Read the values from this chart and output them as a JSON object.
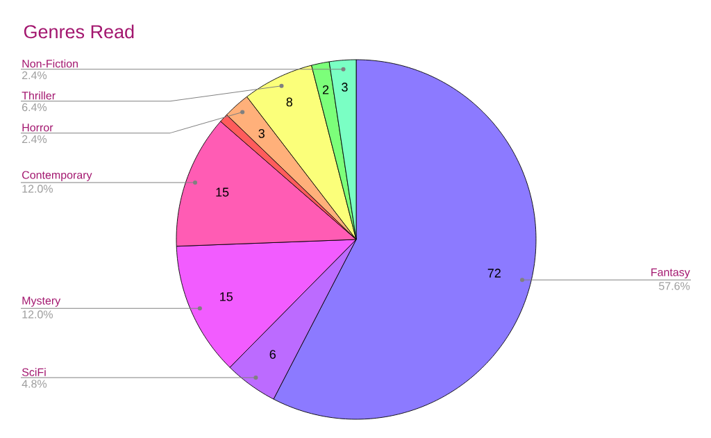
{
  "chart_data": {
    "type": "pie",
    "title": "Genres Read",
    "categories": [
      "Fantasy",
      "SciFi",
      "Mystery",
      "Contemporary",
      null,
      "Horror",
      "Thriller",
      null,
      "Non-Fiction"
    ],
    "values": [
      72,
      6,
      15,
      15,
      1,
      3,
      8,
      2,
      3
    ],
    "colors": [
      "#8c7aff",
      "#bc6bff",
      "#f25cff",
      "#ff5cb4",
      "#ff5c5c",
      "#ffb07a",
      "#fbff7a",
      "#7cff7a",
      "#7affc4"
    ],
    "value_labels": [
      "72",
      "6",
      "15",
      "15",
      null,
      "3",
      "8",
      "2",
      "3"
    ],
    "annotations": [
      {
        "text": "57.6%",
        "x": "Fantasy"
      },
      {
        "text": "4.8%",
        "x": "SciFi"
      },
      {
        "text": "12.0%",
        "x": "Mystery"
      },
      {
        "text": "12.0%",
        "x": "Contemporary"
      },
      {
        "text": "2.4%",
        "x": "Horror"
      },
      {
        "text": "6.4%",
        "x": "Thriller"
      },
      {
        "text": "2.4%",
        "x": "Non-Fiction"
      }
    ],
    "legend": false
  }
}
